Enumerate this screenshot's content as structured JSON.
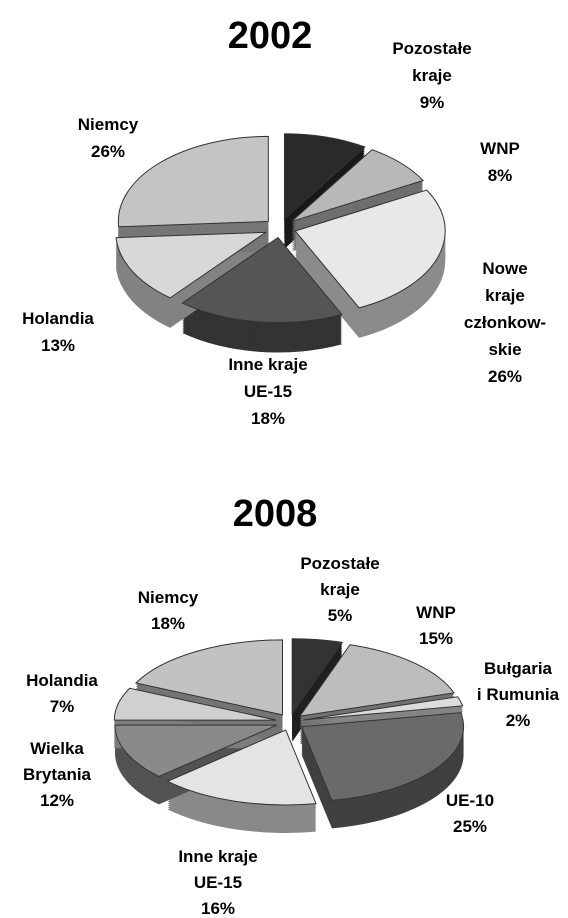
{
  "chart_data": [
    {
      "type": "pie",
      "title": "2002",
      "categories": [
        "Pozostałe\nkraje",
        "WNP",
        "Nowe\nkraje\nczłonkow-\nskie",
        "Inne kraje\nUE-15",
        "Holandia",
        "Niemcy"
      ],
      "values": [
        9,
        8,
        26,
        18,
        13,
        26
      ],
      "value_labels": [
        "9%",
        "8%",
        "26%",
        "18%",
        "13%",
        "26%"
      ],
      "colors": [
        "#2a2a2a",
        "#b8b8b8",
        "#e8e8e8",
        "#555555",
        "#d8d8d8",
        "#c4c4c4"
      ]
    },
    {
      "type": "pie",
      "title": "2008",
      "categories": [
        "Pozostałe\nkraje",
        "WNP",
        "Bułgaria\ni Rumunia",
        "UE-10",
        "Inne kraje\nUE-15",
        "Wielka\nBrytania",
        "Holandia",
        "Niemcy"
      ],
      "values": [
        5,
        15,
        2,
        25,
        16,
        12,
        7,
        18
      ],
      "value_labels": [
        "5%",
        "15%",
        "2%",
        "25%",
        "16%",
        "12%",
        "7%",
        "18%"
      ],
      "colors": [
        "#333333",
        "#bdbdbd",
        "#dcdcdc",
        "#6a6a6a",
        "#e4e4e4",
        "#8a8a8a",
        "#d0d0d0",
        "#c2c2c2"
      ]
    }
  ]
}
